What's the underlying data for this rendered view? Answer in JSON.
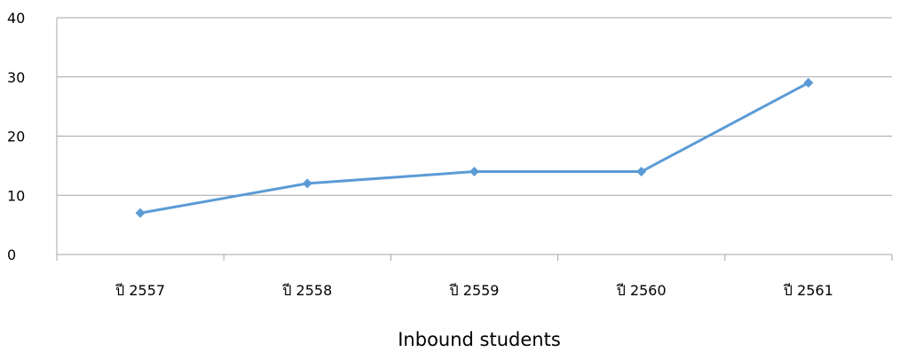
{
  "chart_data": {
    "type": "line",
    "categories": [
      "ปี 2557",
      "ปี 2558",
      "ปี 2559",
      "ปี 2560",
      "ปี 2561"
    ],
    "series": [
      {
        "values": [
          7,
          12,
          14,
          14,
          29
        ],
        "color": "#5b9bd5",
        "marker": "diamond"
      }
    ],
    "xlabel": "Inbound students",
    "ylabel": "",
    "ylim": [
      0,
      40
    ],
    "yticks": [
      0,
      10,
      20,
      30,
      40
    ],
    "grid": true,
    "legend": "none"
  }
}
